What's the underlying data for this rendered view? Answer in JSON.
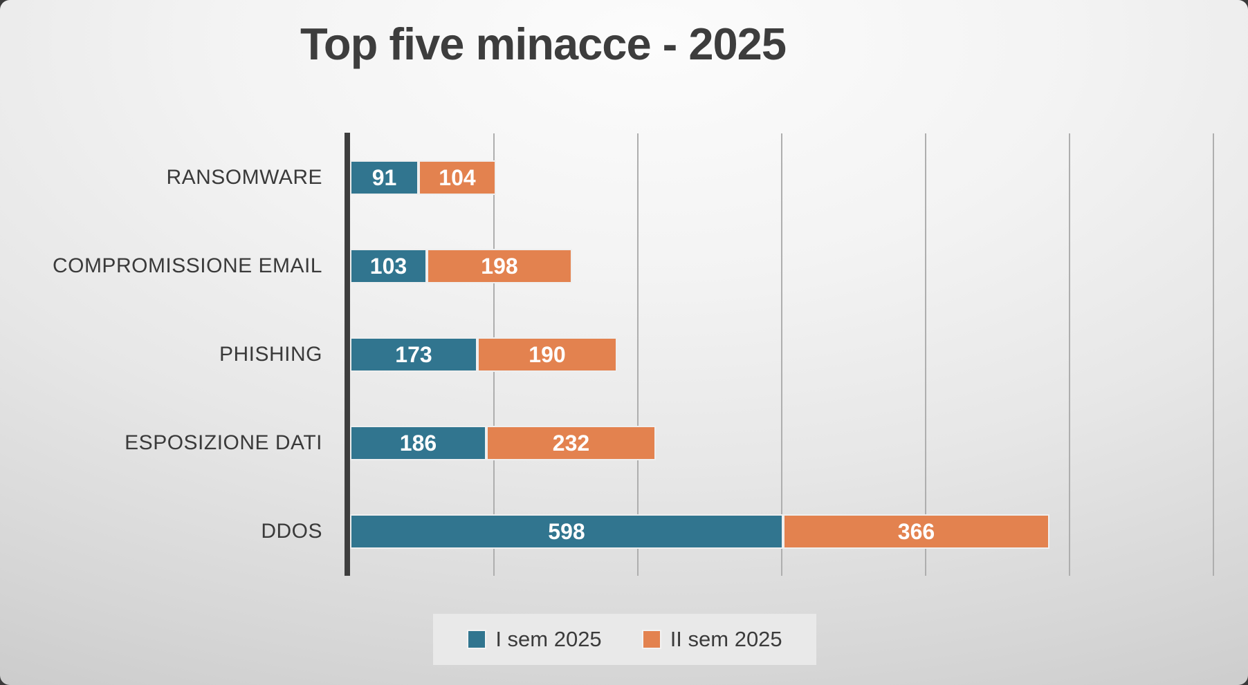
{
  "title": "Top five minacce - 2025",
  "chart_data": {
    "type": "bar",
    "orientation": "horizontal",
    "stacked": true,
    "title": "Top five minacce - 2025",
    "categories": [
      "RANSOMWARE",
      "COMPROMISSIONE EMAIL",
      "PHISHING",
      "ESPOSIZIONE DATI",
      "DDOS"
    ],
    "series": [
      {
        "name": "I sem 2025",
        "color": "#31758f",
        "values": [
          91,
          103,
          173,
          186,
          598
        ]
      },
      {
        "name": "II sem 2025",
        "color": "#e3824f",
        "values": [
          104,
          198,
          190,
          232,
          366
        ]
      }
    ],
    "xlim": [
      0,
      1200
    ],
    "gridline_interval": 200,
    "grid": true,
    "data_labels": true,
    "data_label_color": "#ffffff",
    "legend_position": "bottom",
    "axis_color": "#3e3e3e",
    "gridline_color": "#aeaeae"
  }
}
